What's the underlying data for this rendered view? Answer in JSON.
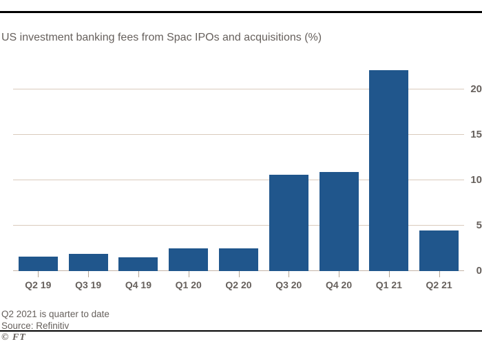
{
  "header": {
    "title": "US investment banking fees from Spac IPOs and acquisitions (%)"
  },
  "chart_data": {
    "type": "bar",
    "title": "US investment banking fees from Spac IPOs and acquisitions (%)",
    "categories": [
      "Q2 19",
      "Q3 19",
      "Q4 19",
      "Q1 20",
      "Q2 20",
      "Q3 20",
      "Q4 20",
      "Q1 21",
      "Q2 21"
    ],
    "values": [
      1.6,
      1.9,
      1.5,
      2.5,
      2.5,
      10.6,
      10.9,
      22.1,
      4.5
    ],
    "unit": "%",
    "xlabel": "",
    "ylabel": "",
    "yticks": [
      0,
      5,
      10,
      15,
      20
    ],
    "ylim": [
      0,
      22.65
    ],
    "grid": "horizontal",
    "ytick_side": "right",
    "legend": "none",
    "bar_color": "#20568c"
  },
  "footer": {
    "note": "Q2 2021 is quarter to date",
    "source": "Source: Refinitiv",
    "credit": "© FT"
  },
  "colors": {
    "bar": "#20568c",
    "grid": "#d9cabc",
    "baseline": "#c2b3a6",
    "tick": "#b3a698",
    "text": "#66605c",
    "rule": "#000000"
  }
}
